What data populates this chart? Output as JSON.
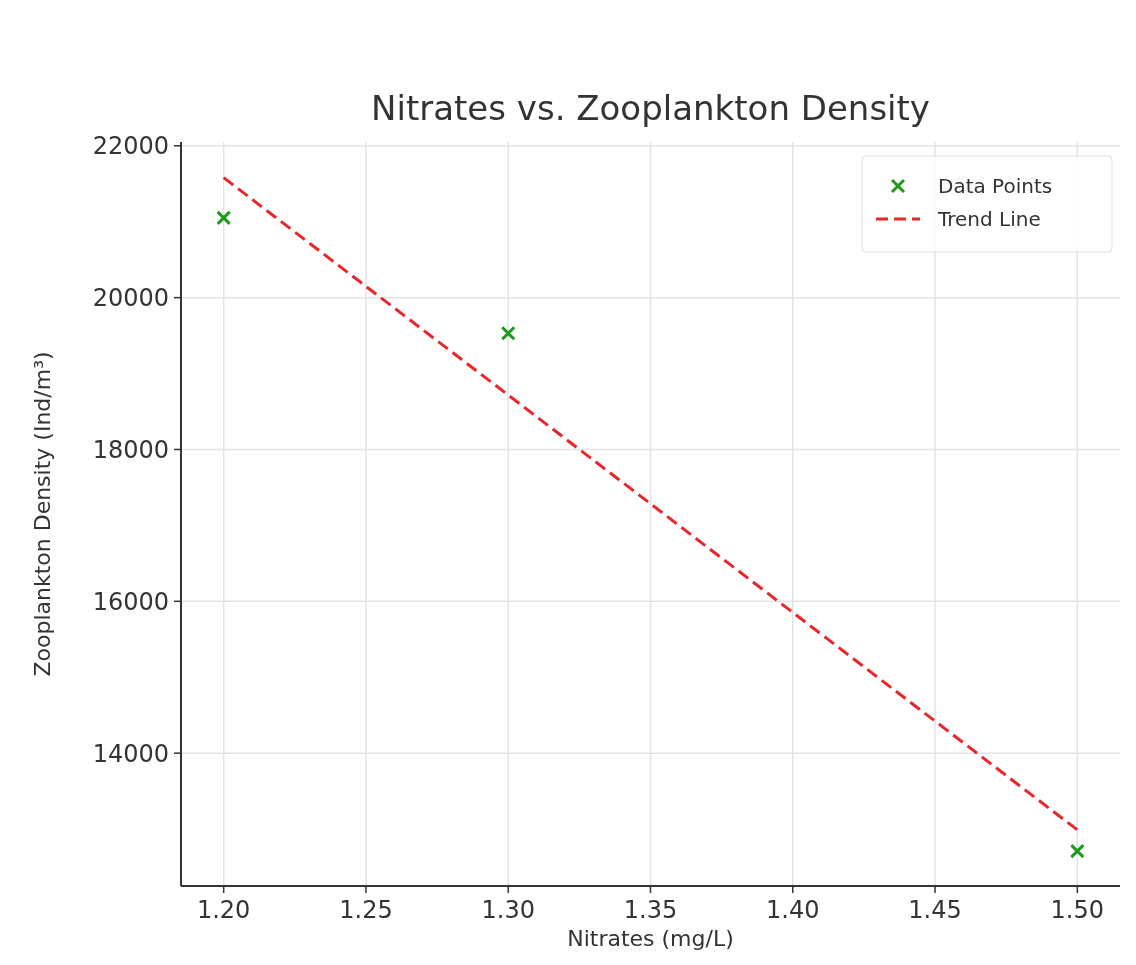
{
  "chart_data": {
    "type": "scatter",
    "title": "Nitrates vs. Zooplankton Density",
    "xlabel": "Nitrates (mg/L)",
    "ylabel": "Zooplankton Density (Ind/m³)",
    "xlim": [
      1.185,
      1.515
    ],
    "xticks": [
      {
        "value": 1.2,
        "label": "1.20"
      },
      {
        "value": 1.25,
        "label": "1.25"
      },
      {
        "value": 1.3,
        "label": "1.30"
      },
      {
        "value": 1.35,
        "label": "1.35"
      },
      {
        "value": 1.4,
        "label": "1.40"
      },
      {
        "value": 1.45,
        "label": "1.45"
      },
      {
        "value": 1.5,
        "label": "1.50"
      }
    ],
    "ylim": [
      12250,
      22050
    ],
    "yticks": [
      14000,
      16000,
      18000,
      20000,
      22000
    ],
    "grid": true,
    "legend": "top right",
    "series": [
      {
        "name": "Data Points",
        "type": "scatter",
        "color": "#1f9a1f",
        "marker": "cross",
        "x": [
          1.2,
          1.3,
          1.5
        ],
        "values": [
          21050,
          19530,
          12710
        ]
      },
      {
        "name": "Trend Line",
        "type": "line",
        "color": "#e8262b",
        "line_style": "dashed",
        "x": [
          1.2,
          1.5
        ],
        "values": [
          21580,
          12990
        ]
      }
    ]
  }
}
